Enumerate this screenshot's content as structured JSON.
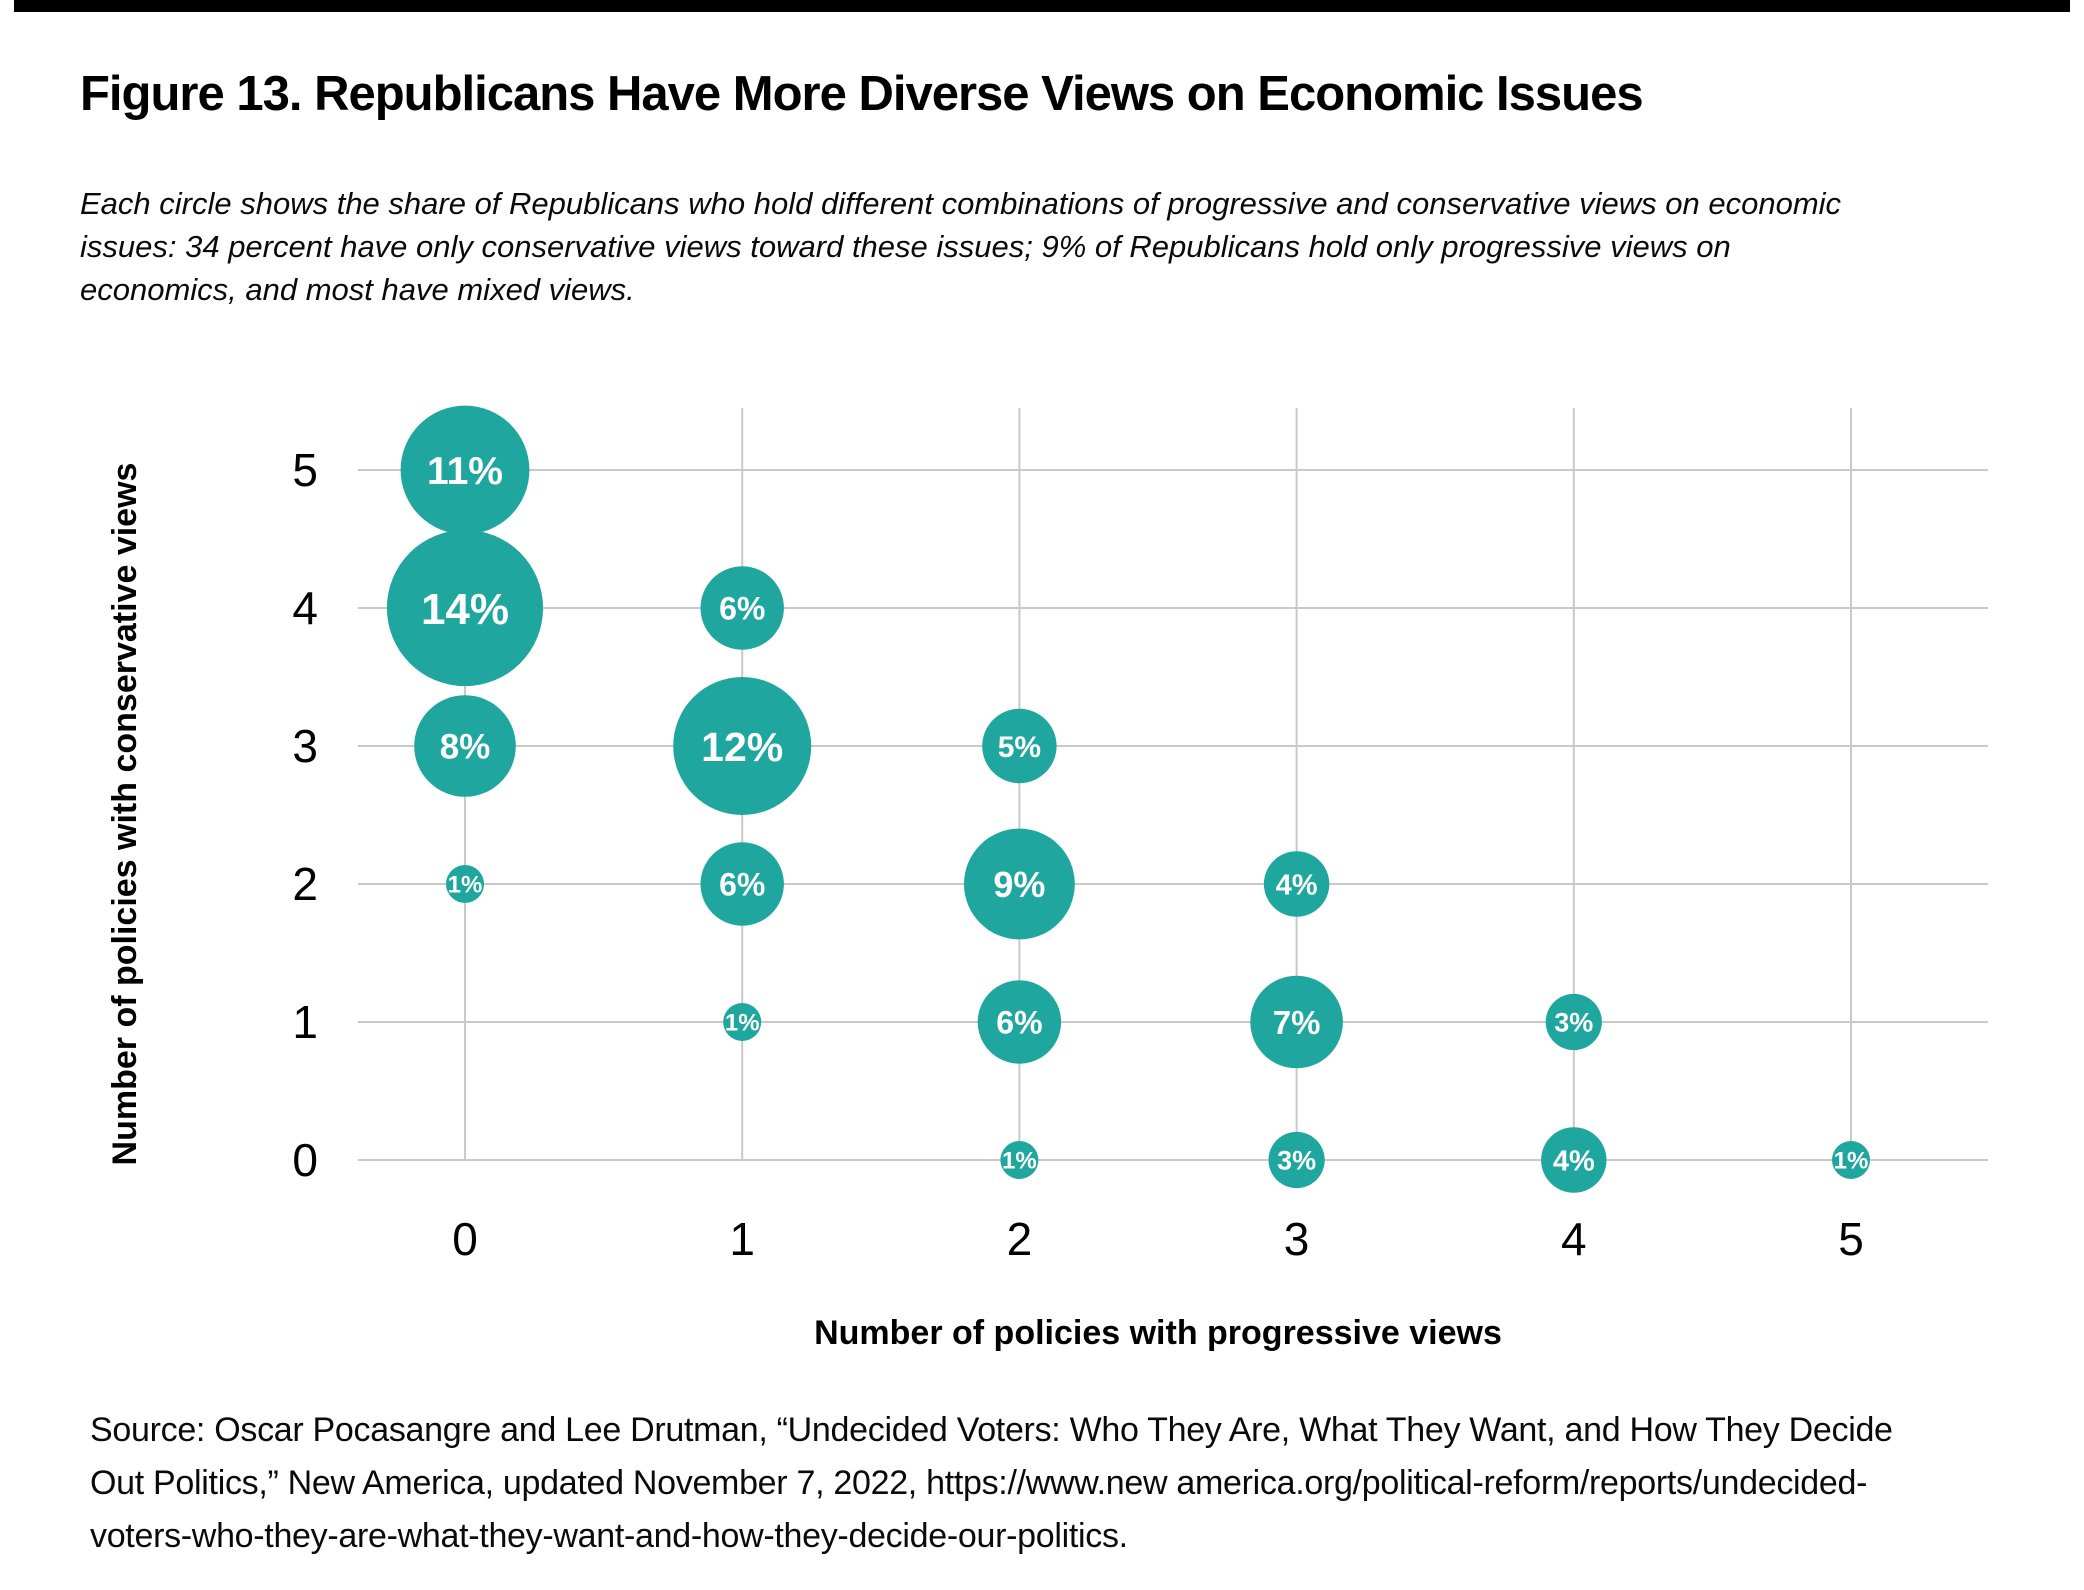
{
  "page": {
    "figure_title": "Figure 13. Republicans Have More Diverse Views on Economic Issues",
    "subtitle_lines": [
      "Each circle shows the share of Republicans who hold different combinations of progressive and conservative views on economic",
      "issues: 34 percent have only conservative views toward these issues; 9% of Republicans hold only progressive views on",
      "economics, and most have mixed views."
    ],
    "source_lines": [
      "Source: Oscar Pocasangre and Lee Drutman, “Undecided Voters: Who They Are, What They Want, and How They Decide",
      "Out Politics,” New America, updated November 7, 2022, https://www.new america.org/political-reform/reports/undecided-",
      "voters-who-they-are-what-they-want-and-how-they-decide-our-politics."
    ],
    "top_bar_color": "#000000"
  },
  "chart_data": {
    "type": "bubble",
    "title": "Figure 13. Republicans Have More Diverse Views on Economic Issues",
    "xlabel": "Number of policies with progressive views",
    "ylabel": "Number of policies with conservative views",
    "x_ticks": [
      "0",
      "1",
      "2",
      "3",
      "4",
      "5"
    ],
    "y_ticks": [
      "0",
      "1",
      "2",
      "3",
      "4",
      "5"
    ],
    "x_range": [
      0,
      5
    ],
    "y_range": [
      0,
      5
    ],
    "grid": true,
    "legend": "none",
    "value_unit": "percent of Republicans",
    "colors": {
      "bubble": "#1FA79F",
      "bubble_label": "#FFFFFF",
      "grid": "#C9C9C9",
      "text": "#000000"
    },
    "points": [
      {
        "x": 0,
        "y": 5,
        "value_pct": 11,
        "label": "11%"
      },
      {
        "x": 0,
        "y": 4,
        "value_pct": 14,
        "label": "14%"
      },
      {
        "x": 0,
        "y": 3,
        "value_pct": 8,
        "label": "8%"
      },
      {
        "x": 0,
        "y": 2,
        "value_pct": 1,
        "label": "1%"
      },
      {
        "x": 1,
        "y": 4,
        "value_pct": 6,
        "label": "6%"
      },
      {
        "x": 1,
        "y": 3,
        "value_pct": 12,
        "label": "12%"
      },
      {
        "x": 1,
        "y": 2,
        "value_pct": 6,
        "label": "6%"
      },
      {
        "x": 1,
        "y": 1,
        "value_pct": 1,
        "label": "1%"
      },
      {
        "x": 2,
        "y": 3,
        "value_pct": 5,
        "label": "5%"
      },
      {
        "x": 2,
        "y": 2,
        "value_pct": 9,
        "label": "9%"
      },
      {
        "x": 2,
        "y": 1,
        "value_pct": 6,
        "label": "6%"
      },
      {
        "x": 2,
        "y": 0,
        "value_pct": 1,
        "label": "1%"
      },
      {
        "x": 3,
        "y": 2,
        "value_pct": 4,
        "label": "4%"
      },
      {
        "x": 3,
        "y": 1,
        "value_pct": 7,
        "label": "7%"
      },
      {
        "x": 3,
        "y": 0,
        "value_pct": 3,
        "label": "3%"
      },
      {
        "x": 4,
        "y": 1,
        "value_pct": 3,
        "label": "3%"
      },
      {
        "x": 4,
        "y": 0,
        "value_pct": 4,
        "label": "4%"
      },
      {
        "x": 5,
        "y": 0,
        "value_pct": 1,
        "label": "1%"
      }
    ]
  }
}
